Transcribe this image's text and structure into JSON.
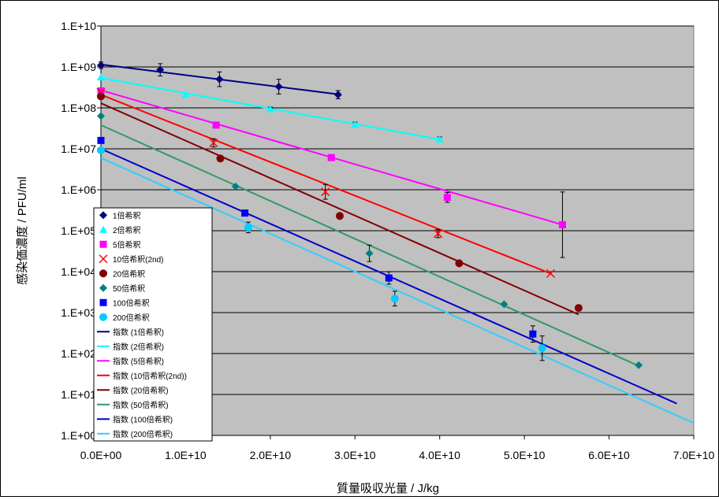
{
  "chart_data": {
    "type": "scatter",
    "title": "",
    "xlabel": "質量吸収光量 / J/kg",
    "ylabel": "感染価濃度 / PFU/ml",
    "xlim": [
      0,
      70000000000
    ],
    "ylim": [
      1,
      10000000000
    ],
    "yscale": "log",
    "grid": "horizontal",
    "legend_position": "left-middle",
    "plot_background": "#c0c0c0",
    "xtick_labels": [
      "0.0E+00",
      "1.0E+10",
      "2.0E+10",
      "3.0E+10",
      "4.0E+10",
      "5.0E+10",
      "6.0E+10",
      "7.0E+10"
    ],
    "ytick_labels": [
      "1.E+00",
      "1.E+01",
      "1.E+02",
      "1.E+03",
      "1.E+04",
      "1.E+05",
      "1.E+06",
      "1.E+07",
      "1.E+08",
      "1.E+09",
      "1.E+10"
    ],
    "series": [
      {
        "name": "1倍希釈",
        "marker": "diamond",
        "color": "#000080",
        "x": [
          0,
          7000000000,
          14000000000,
          21000000000,
          28000000000
        ],
        "y": [
          1100000000,
          850000000,
          500000000,
          330000000,
          210000000
        ],
        "err": [
          0.08,
          0.15,
          0.18,
          0.18,
          0.1
        ]
      },
      {
        "name": "2倍希釈",
        "marker": "triangle",
        "color": "#00ffff",
        "x": [
          0,
          10000000000,
          20000000000,
          30000000000,
          40000000000
        ],
        "y": [
          560000000,
          210000000,
          93000000,
          39000000,
          17000000
        ],
        "err": [
          0,
          0,
          0.05,
          0.06,
          0.06
        ]
      },
      {
        "name": "5倍希釈",
        "marker": "square",
        "color": "#ff00ff",
        "x": [
          0,
          13600000000,
          27200000000,
          40900000000,
          54500000000
        ],
        "y": [
          260000000,
          38000000,
          6100000,
          650000,
          140000
        ],
        "err": [
          0,
          0,
          0,
          0.12,
          0.8
        ]
      },
      {
        "name": "10倍希釈(2nd)",
        "marker": "x",
        "color": "#ff0000",
        "x": [
          0,
          13300000000,
          26500000000,
          39800000000,
          53100000000
        ],
        "y": [
          240000000,
          14000000,
          890000,
          85000,
          9000
        ],
        "err": [
          0,
          0.1,
          0.18,
          0.1,
          0
        ]
      },
      {
        "name": "20倍希釈",
        "marker": "circle",
        "color": "#800000",
        "x": [
          0,
          14100000000,
          28200000000,
          42300000000,
          56400000000
        ],
        "y": [
          190000000,
          5800000,
          230000,
          16000,
          1300
        ],
        "err": [
          0,
          0,
          0,
          0,
          0
        ]
      },
      {
        "name": "50倍希釈",
        "marker": "diamond",
        "color": "#008080",
        "x": [
          0,
          15900000000,
          31700000000,
          47600000000,
          63500000000
        ],
        "y": [
          63000000,
          1200000,
          28000,
          1600,
          52
        ],
        "err": [
          0,
          0,
          0.2,
          0,
          0
        ]
      },
      {
        "name": "100倍希釈",
        "marker": "square",
        "color": "#0000ff",
        "x": [
          0,
          17000000000,
          34000000000,
          51000000000
        ],
        "y": [
          16000000,
          270000,
          7000,
          300
        ],
        "err": [
          0,
          0,
          0.15,
          0.2
        ]
      },
      {
        "name": "200倍希釈",
        "marker": "circle",
        "color": "#00ccff",
        "x": [
          0,
          17400000000,
          34700000000,
          52100000000
        ],
        "y": [
          9200000,
          120000,
          2200,
          135
        ],
        "err": [
          0,
          0.13,
          0.18,
          0.3
        ]
      }
    ],
    "trendlines": [
      {
        "name": "指数 (1倍希釈)",
        "color": "#000080",
        "x": [
          0,
          28000000000
        ],
        "y": [
          1150000000,
          215000000
        ]
      },
      {
        "name": "指数 (2倍希釈)",
        "color": "#00ffff",
        "x": [
          0,
          40000000000
        ],
        "y": [
          540000000,
          17000000
        ]
      },
      {
        "name": "指数 (5倍希釈)",
        "color": "#ff00ff",
        "x": [
          0,
          54500000000
        ],
        "y": [
          270000000,
          140000
        ]
      },
      {
        "name": "指数 (10倍希釈(2nd))",
        "color": "#ff0000",
        "x": [
          0,
          53100000000
        ],
        "y": [
          210000000,
          9000
        ]
      },
      {
        "name": "指数 (20倍希釈)",
        "color": "#800000",
        "x": [
          0,
          56400000000
        ],
        "y": [
          130000000,
          900
        ]
      },
      {
        "name": "指数 (50倍希釈)",
        "color": "#339966",
        "x": [
          0,
          63500000000
        ],
        "y": [
          38000000,
          50
        ]
      },
      {
        "name": "指数 (100倍希釈)",
        "color": "#0000cc",
        "x": [
          0,
          68000000000
        ],
        "y": [
          10000000,
          6
        ]
      },
      {
        "name": "指数 (200倍希釈)",
        "color": "#33ccff",
        "x": [
          0,
          70000000000
        ],
        "y": [
          6000000,
          2
        ]
      }
    ]
  }
}
